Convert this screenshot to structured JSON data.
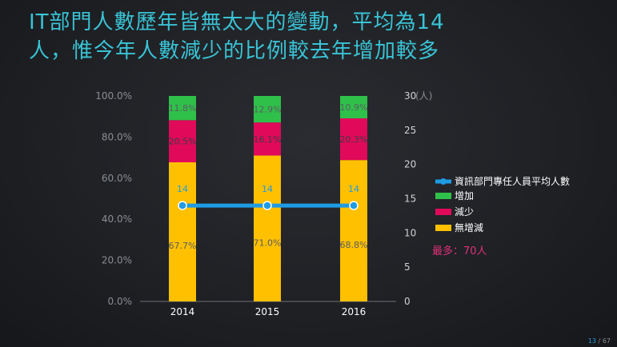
{
  "title_lines": [
    "IT部門人數歷年皆無太大的變動，平均為14",
    "人，惟今年人數減少的比例較去年增加較多"
  ],
  "chart_data": {
    "type": "bar",
    "stacked": true,
    "percent_stacked": true,
    "categories": [
      "2014",
      "2015",
      "2016"
    ],
    "series": [
      {
        "name": "無增減",
        "values": [
          67.7,
          71.0,
          68.8
        ],
        "labels": [
          "67.7%",
          "71.0%",
          "68.8%"
        ],
        "color": "#ffc000"
      },
      {
        "name": "減少",
        "values": [
          20.5,
          16.1,
          20.3
        ],
        "labels": [
          "20.5%",
          "16.1%",
          "20.3%"
        ],
        "color": "#e0095a"
      },
      {
        "name": "增加",
        "values": [
          11.8,
          12.9,
          10.9
        ],
        "labels": [
          "11.8%",
          "12.9%",
          "10.9%"
        ],
        "color": "#2fc04a"
      }
    ],
    "line_series": {
      "name": "資訊部門專任人員平均人數",
      "values": [
        14,
        14,
        14
      ],
      "labels": [
        "14",
        "14",
        "14"
      ],
      "color": "#1f9be4"
    },
    "y_left": {
      "ticks": [
        "0.0%",
        "20.0%",
        "40.0%",
        "60.0%",
        "80.0%",
        "100.0%"
      ],
      "range": [
        0,
        100
      ]
    },
    "y_right": {
      "ticks": [
        "0",
        "5",
        "10",
        "15",
        "20",
        "25",
        "30"
      ],
      "range": [
        0,
        30
      ],
      "unit": "(人)"
    },
    "legend_position": "right",
    "annotation": "最多：70人"
  },
  "pager": {
    "current": "13",
    "separator": " / ",
    "total": "67"
  }
}
